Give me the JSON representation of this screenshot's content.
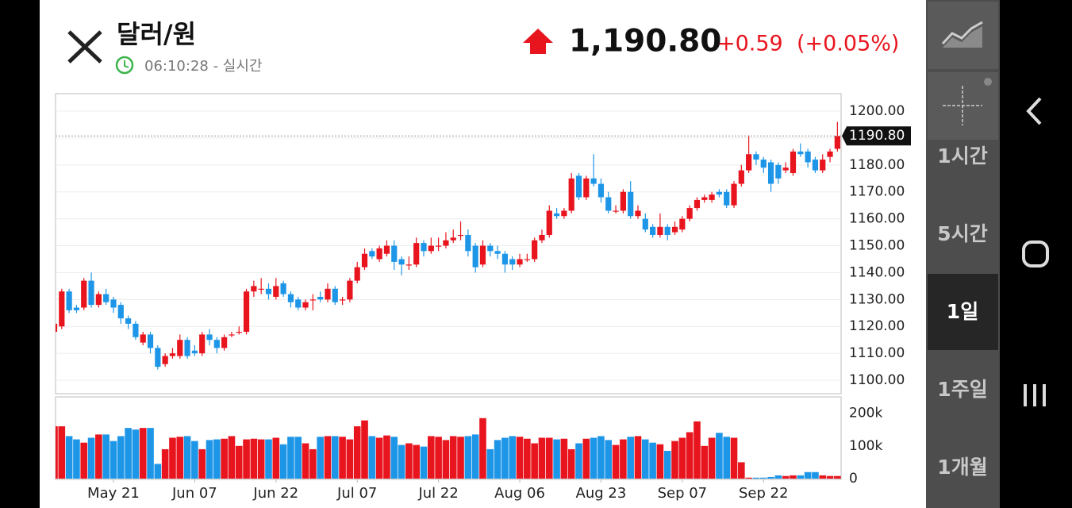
{
  "header": {
    "title": "달러/원",
    "time": "06:10:28 - 실시간",
    "price": "1,190.80",
    "change": "+0.59",
    "change_pct": "(+0.05%)"
  },
  "sidebar": {
    "buttons": [
      "1시간",
      "5시간",
      "1일",
      "1주일",
      "1개월"
    ]
  },
  "chart_data": [
    {
      "type": "candlestick",
      "up_color": "#e8141e",
      "down_color": "#1e96e8",
      "ylim": [
        1095,
        1206.5
      ],
      "yticks": [
        {
          "value": 1100,
          "label": "1100.00"
        },
        {
          "value": 1110,
          "label": "1110.00"
        },
        {
          "value": 1120,
          "label": "1120.00"
        },
        {
          "value": 1130,
          "label": "1130.00"
        },
        {
          "value": 1140,
          "label": "1140.00"
        },
        {
          "value": 1150,
          "label": "1150.00"
        },
        {
          "value": 1160,
          "label": "1160.00"
        },
        {
          "value": 1170,
          "label": "1170.00"
        },
        {
          "value": 1180,
          "label": "1180.00"
        },
        {
          "value": 1190,
          "label": "1190.00"
        },
        {
          "value": 1200,
          "label": "1200.00"
        }
      ],
      "grid": true,
      "last_price": {
        "value": 1190.8,
        "label": "1190.80"
      },
      "open": [
        1118,
        1120,
        1133,
        1127,
        1127,
        1137,
        1128,
        1132,
        1130,
        1128,
        1123,
        1121,
        1114,
        1117,
        1112,
        1106,
        1109,
        1109,
        1115,
        1111,
        1110,
        1117,
        1115,
        1112,
        1117,
        1118,
        1118,
        1133,
        1134,
        1134,
        1131,
        1136,
        1132,
        1130,
        1127,
        1130,
        1131,
        1130,
        1134,
        1130,
        1130,
        1137,
        1142,
        1148,
        1145,
        1147,
        1150,
        1145,
        1143,
        1143,
        1151,
        1148,
        1150,
        1150,
        1152,
        1154,
        1154,
        1150,
        1143,
        1150,
        1148,
        1147,
        1145,
        1143,
        1145,
        1145,
        1152,
        1154,
        1162,
        1161,
        1163,
        1176,
        1168,
        1175,
        1173,
        1168,
        1163,
        1163,
        1170,
        1161,
        1160,
        1157,
        1154,
        1157,
        1155,
        1156,
        1160,
        1164,
        1167,
        1167,
        1170,
        1170,
        1165,
        1173,
        1178,
        1184,
        1182,
        1181,
        1180,
        1178,
        1177,
        1185,
        1185,
        1182,
        1178,
        1183,
        1186
      ],
      "high": [
        1123,
        1134,
        1134,
        1128,
        1138,
        1140,
        1133,
        1134,
        1131,
        1129,
        1124,
        1122,
        1118,
        1118,
        1113,
        1110,
        1112,
        1117,
        1116,
        1113,
        1118,
        1119,
        1116,
        1117,
        1118,
        1120,
        1134,
        1137,
        1138,
        1136,
        1138,
        1137,
        1133,
        1131,
        1130,
        1132,
        1133,
        1136,
        1135,
        1131,
        1138,
        1144,
        1149,
        1149,
        1150,
        1152,
        1152,
        1146,
        1146,
        1153,
        1152,
        1153,
        1153,
        1155,
        1156,
        1159,
        1156,
        1151,
        1152,
        1151,
        1150,
        1148,
        1146,
        1147,
        1147,
        1153,
        1156,
        1165,
        1164,
        1164,
        1177,
        1177,
        1176,
        1184,
        1175,
        1170,
        1165,
        1171,
        1174,
        1165,
        1162,
        1158,
        1162,
        1158,
        1159,
        1161,
        1165,
        1168,
        1169,
        1170,
        1171,
        1171,
        1174,
        1180,
        1191,
        1185,
        1183,
        1182,
        1181,
        1181,
        1186,
        1188,
        1186,
        1183,
        1184,
        1186,
        1196
      ],
      "low": [
        1116,
        1119,
        1125,
        1125,
        1126,
        1127,
        1127,
        1128,
        1125,
        1121,
        1119,
        1115,
        1113,
        1110,
        1104,
        1105,
        1108,
        1108,
        1108,
        1109,
        1109,
        1113,
        1110,
        1111,
        1116,
        1117,
        1117,
        1131,
        1132,
        1130,
        1130,
        1131,
        1127,
        1126,
        1126,
        1126,
        1129,
        1129,
        1128,
        1128,
        1129,
        1136,
        1141,
        1145,
        1144,
        1146,
        1141,
        1139,
        1141,
        1142,
        1146,
        1147,
        1148,
        1149,
        1151,
        1152,
        1146,
        1140,
        1142,
        1146,
        1145,
        1140,
        1141,
        1142,
        1144,
        1144,
        1151,
        1153,
        1160,
        1160,
        1162,
        1167,
        1167,
        1172,
        1166,
        1162,
        1162,
        1162,
        1160,
        1160,
        1155,
        1153,
        1153,
        1152,
        1154,
        1155,
        1159,
        1163,
        1166,
        1166,
        1168,
        1164,
        1164,
        1172,
        1177,
        1180,
        1177,
        1170,
        1173,
        1177,
        1176,
        1183,
        1179,
        1177,
        1177,
        1181,
        1185
      ],
      "close": [
        1121,
        1133,
        1126,
        1126,
        1137,
        1128,
        1132,
        1129,
        1127,
        1123,
        1121,
        1116,
        1117,
        1112,
        1105,
        1109,
        1110,
        1115,
        1109,
        1110,
        1117,
        1115,
        1112,
        1116,
        1117,
        1118,
        1133,
        1135,
        1134,
        1132,
        1135,
        1132,
        1129,
        1127,
        1129,
        1130,
        1130,
        1134,
        1129,
        1130,
        1137,
        1142,
        1147,
        1146,
        1149,
        1150,
        1144,
        1143,
        1143,
        1151,
        1148,
        1150,
        1150,
        1152,
        1153,
        1154,
        1148,
        1142,
        1150,
        1148,
        1147,
        1143,
        1143,
        1145,
        1145,
        1152,
        1154,
        1163,
        1161,
        1163,
        1175,
        1168,
        1175,
        1173,
        1168,
        1163,
        1163,
        1170,
        1161,
        1163,
        1156,
        1154,
        1157,
        1154,
        1157,
        1160,
        1164,
        1167,
        1168,
        1169,
        1169,
        1165,
        1173,
        1178,
        1184,
        1182,
        1179,
        1173,
        1175,
        1179,
        1185,
        1184,
        1181,
        1178,
        1182,
        1185,
        1190.8
      ]
    },
    {
      "type": "bar",
      "ylim": [
        0,
        250000
      ],
      "yticks": [
        0,
        {
          "value": 100000,
          "label": "100k"
        },
        {
          "value": 200000,
          "label": "200k"
        }
      ],
      "xticks": [
        {
          "value": 8,
          "label": "May 21"
        },
        {
          "value": 19,
          "label": "Jun 07"
        },
        {
          "value": 30,
          "label": "Jun 22"
        },
        {
          "value": 41,
          "label": "Jul 07"
        },
        {
          "value": 52,
          "label": "Jul 22"
        },
        {
          "value": 63,
          "label": "Aug 06"
        },
        {
          "value": 74,
          "label": "Aug 23"
        },
        {
          "value": 85,
          "label": "Sep 07"
        },
        {
          "value": 96,
          "label": "Sep 22"
        }
      ],
      "values": [
        160000,
        160000,
        130000,
        120000,
        110000,
        125000,
        135000,
        135000,
        115000,
        130000,
        155000,
        150000,
        155000,
        155000,
        45000,
        90000,
        125000,
        128000,
        130000,
        115000,
        90000,
        118000,
        120000,
        122000,
        130000,
        100000,
        120000,
        122000,
        120000,
        120000,
        125000,
        105000,
        128000,
        128000,
        108000,
        90000,
        128000,
        130000,
        130000,
        128000,
        120000,
        160000,
        178000,
        130000,
        125000,
        132000,
        128000,
        103000,
        108000,
        103000,
        98000,
        130000,
        128000,
        118000,
        130000,
        128000,
        130000,
        135000,
        185000,
        90000,
        118000,
        125000,
        130000,
        128000,
        122000,
        108000,
        125000,
        125000,
        120000,
        122000,
        90000,
        108000,
        122000,
        125000,
        130000,
        118000,
        103000,
        120000,
        128000,
        130000,
        120000,
        110000,
        105000,
        85000,
        115000,
        125000,
        142000,
        175000,
        100000,
        125000,
        140000,
        128000,
        125000,
        50000,
        3000,
        3000,
        3000,
        5000,
        10000,
        8000,
        10000,
        10000,
        20000,
        20000,
        10000,
        8000,
        8000
      ]
    }
  ]
}
